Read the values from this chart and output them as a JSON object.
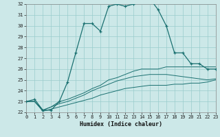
{
  "title": "",
  "xlabel": "Humidex (Indice chaleur)",
  "bg_color": "#cce8e8",
  "grid_color": "#99cccc",
  "line_color": "#1a7070",
  "xmin": 0,
  "xmax": 23,
  "ymin": 22,
  "ymax": 32,
  "x_hours": [
    0,
    1,
    2,
    3,
    4,
    5,
    6,
    7,
    8,
    9,
    10,
    11,
    12,
    13,
    14,
    15,
    16,
    17,
    18,
    19,
    20,
    21,
    22,
    23
  ],
  "main_series": [
    23,
    23.2,
    22.2,
    22.2,
    23,
    24.8,
    27.5,
    30.2,
    30.2,
    29.5,
    31.8,
    32,
    31.8,
    32,
    32.5,
    32.5,
    31.5,
    30,
    27.5,
    27.5,
    26.5,
    26.5,
    26,
    26
  ],
  "line2": [
    23,
    23,
    22.2,
    22.5,
    23,
    23.2,
    23.5,
    23.8,
    24.2,
    24.5,
    25,
    25.2,
    25.5,
    25.8,
    26,
    26,
    26,
    26.2,
    26.2,
    26.2,
    26.2,
    26.2,
    26.2,
    26.2
  ],
  "line3": [
    23,
    23,
    22.2,
    22.5,
    22.8,
    23.0,
    23.3,
    23.6,
    24.0,
    24.3,
    24.6,
    24.9,
    25.1,
    25.3,
    25.4,
    25.5,
    25.5,
    25.5,
    25.4,
    25.3,
    25.2,
    25.1,
    25.0,
    25.1
  ],
  "line4": [
    23,
    23,
    22.1,
    22.3,
    22.5,
    22.7,
    22.9,
    23.1,
    23.3,
    23.6,
    23.8,
    24.0,
    24.2,
    24.3,
    24.4,
    24.5,
    24.5,
    24.5,
    24.6,
    24.6,
    24.7,
    24.7,
    24.8,
    25.0
  ]
}
